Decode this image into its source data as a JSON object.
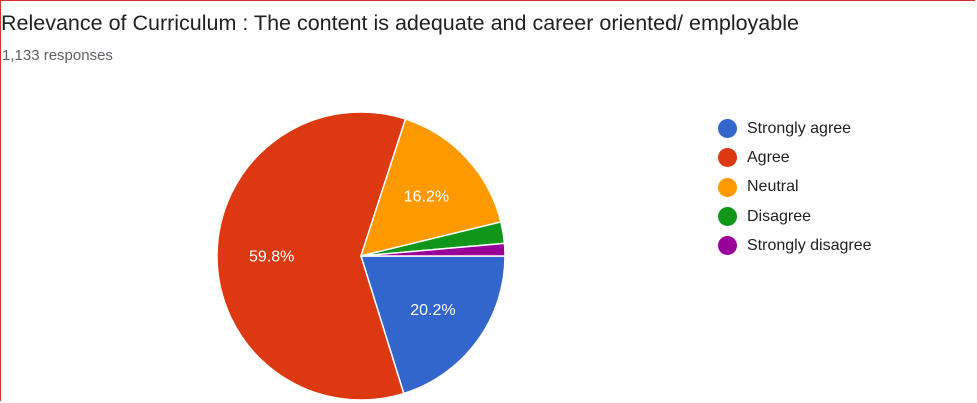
{
  "header": {
    "title": "Relevance of Curriculum : The content is adequate and career oriented/ employable",
    "responses": "1,133 responses"
  },
  "chart_data": {
    "type": "pie",
    "title": "Relevance of Curriculum : The content is adequate and career oriented/ employable",
    "subtitle": "1,133 responses",
    "legend_position": "right",
    "slices": [
      {
        "label": "Strongly agree",
        "value": 20.2,
        "display": "20.2%",
        "color": "#3366cc"
      },
      {
        "label": "Agree",
        "value": 59.8,
        "display": "59.8%",
        "color": "#dc3912"
      },
      {
        "label": "Neutral",
        "value": 16.2,
        "display": "16.2%",
        "color": "#ff9900"
      },
      {
        "label": "Disagree",
        "value": 2.4,
        "display": "",
        "color": "#109618"
      },
      {
        "label": "Strongly disagree",
        "value": 1.4,
        "display": "",
        "color": "#990099"
      }
    ]
  }
}
